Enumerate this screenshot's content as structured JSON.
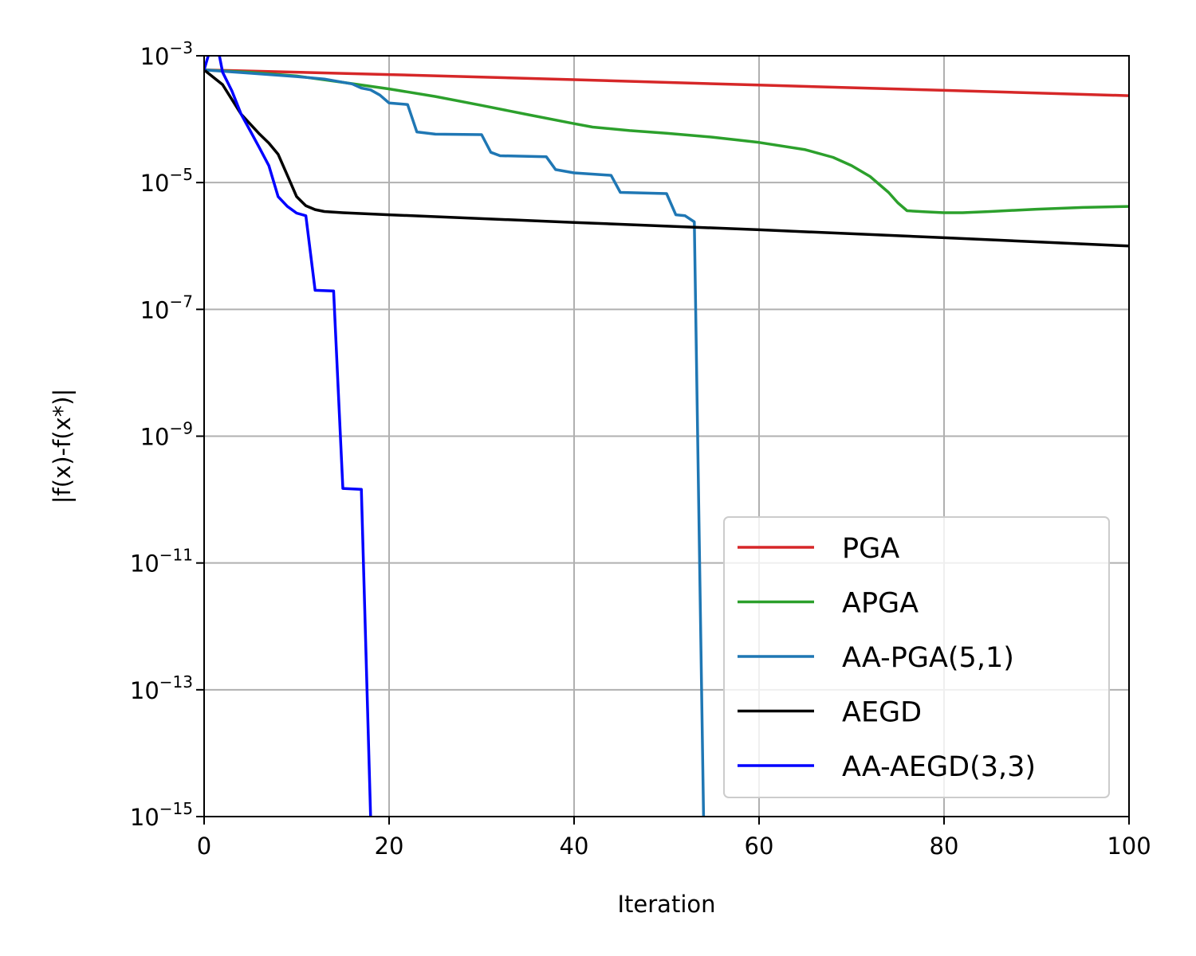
{
  "chart_data": {
    "type": "line",
    "xlabel": "Iteration",
    "ylabel": "|f(x)-f(x*)|",
    "xlim": [
      0,
      100
    ],
    "ylim": [
      1e-15,
      0.001
    ],
    "yscale": "log",
    "grid": true,
    "legend_position": "lower-right",
    "x_ticks": [
      {
        "value": 0,
        "label": "0"
      },
      {
        "value": 20,
        "label": "20"
      },
      {
        "value": 40,
        "label": "40"
      },
      {
        "value": 60,
        "label": "60"
      },
      {
        "value": 80,
        "label": "80"
      },
      {
        "value": 100,
        "label": "100"
      }
    ],
    "y_ticks": [
      {
        "value": 0.001,
        "base": "10",
        "exp": "−3"
      },
      {
        "value": 1e-05,
        "base": "10",
        "exp": "−5"
      },
      {
        "value": 1e-07,
        "base": "10",
        "exp": "−7"
      },
      {
        "value": 1e-09,
        "base": "10",
        "exp": "−9"
      },
      {
        "value": 1e-11,
        "base": "10",
        "exp": "−11"
      },
      {
        "value": 1e-13,
        "base": "10",
        "exp": "−13"
      },
      {
        "value": 1e-15,
        "base": "10",
        "exp": "−15"
      }
    ],
    "series": [
      {
        "name": "PGA",
        "color": "#d62728",
        "points": [
          [
            0,
            0.0006
          ],
          [
            20,
            0.000505
          ],
          [
            40,
            0.00042
          ],
          [
            60,
            0.000345
          ],
          [
            80,
            0.000285
          ],
          [
            100,
            0.000235
          ]
        ]
      },
      {
        "name": "APGA",
        "color": "#2ca02c",
        "points": [
          [
            0,
            0.0006
          ],
          [
            5,
            0.00055
          ],
          [
            10,
            0.00048
          ],
          [
            15,
            0.00038
          ],
          [
            20,
            0.0003
          ],
          [
            25,
            0.000228
          ],
          [
            30,
            0.000165
          ],
          [
            35,
            0.000118
          ],
          [
            40,
            8.5e-05
          ],
          [
            42,
            7.5e-05
          ],
          [
            46,
            6.6e-05
          ],
          [
            50,
            6e-05
          ],
          [
            55,
            5.2e-05
          ],
          [
            60,
            4.3e-05
          ],
          [
            65,
            3.3e-05
          ],
          [
            68,
            2.5e-05
          ],
          [
            70,
            1.85e-05
          ],
          [
            72,
            1.25e-05
          ],
          [
            74,
            7e-06
          ],
          [
            75,
            4.8e-06
          ],
          [
            76,
            3.6e-06
          ],
          [
            78,
            3.45e-06
          ],
          [
            80,
            3.35e-06
          ],
          [
            82,
            3.35e-06
          ],
          [
            85,
            3.5e-06
          ],
          [
            90,
            3.8e-06
          ],
          [
            95,
            4.05e-06
          ],
          [
            100,
            4.2e-06
          ]
        ]
      },
      {
        "name": "AA-PGA(5,1)",
        "color": "#1f77b4",
        "points": [
          [
            0,
            0.0006
          ],
          [
            5,
            0.00053
          ],
          [
            10,
            0.00047
          ],
          [
            13,
            0.00043
          ],
          [
            16,
            0.00036
          ],
          [
            17,
            0.00031
          ],
          [
            18,
            0.00029
          ],
          [
            19,
            0.00024
          ],
          [
            20,
            0.00018
          ],
          [
            22,
            0.00017
          ],
          [
            23,
            6.3e-05
          ],
          [
            25,
            5.8e-05
          ],
          [
            30,
            5.7e-05
          ],
          [
            31,
            3e-05
          ],
          [
            32,
            2.65e-05
          ],
          [
            37,
            2.55e-05
          ],
          [
            38,
            1.6e-05
          ],
          [
            40,
            1.42e-05
          ],
          [
            44,
            1.3e-05
          ],
          [
            45,
            7e-06
          ],
          [
            50,
            6.7e-06
          ],
          [
            51,
            3.1e-06
          ],
          [
            52,
            3e-06
          ],
          [
            53,
            2.4e-06
          ],
          [
            54,
            1e-15
          ]
        ]
      },
      {
        "name": "AEGD",
        "color": "#000000",
        "points": [
          [
            0,
            0.0006
          ],
          [
            2,
            0.00035
          ],
          [
            4,
            0.00012
          ],
          [
            6,
            5.8e-05
          ],
          [
            7,
            4.2e-05
          ],
          [
            8,
            2.8e-05
          ],
          [
            9,
            1.3e-05
          ],
          [
            10,
            6e-06
          ],
          [
            11,
            4.3e-06
          ],
          [
            12,
            3.75e-06
          ],
          [
            13,
            3.5e-06
          ],
          [
            15,
            3.35e-06
          ],
          [
            20,
            3.1e-06
          ],
          [
            40,
            2.35e-06
          ],
          [
            60,
            1.8e-06
          ],
          [
            80,
            1.35e-06
          ],
          [
            100,
            1e-06
          ]
        ]
      },
      {
        "name": "AA-AEGD(3,3)",
        "color": "#0000ff",
        "points": [
          [
            0,
            0.0006
          ],
          [
            0.8,
            0.0015
          ],
          [
            1.5,
            0.0013
          ],
          [
            2,
            0.00055
          ],
          [
            3,
            0.00028
          ],
          [
            4,
            0.00012
          ],
          [
            5,
            6.5e-05
          ],
          [
            6,
            3.5e-05
          ],
          [
            7,
            1.85e-05
          ],
          [
            8,
            6e-06
          ],
          [
            9,
            4.2e-06
          ],
          [
            10,
            3.3e-06
          ],
          [
            11,
            3e-06
          ],
          [
            12,
            2e-07
          ],
          [
            14,
            1.95e-07
          ],
          [
            15,
            1.5e-10
          ],
          [
            17,
            1.45e-10
          ],
          [
            18,
            1e-15
          ]
        ]
      }
    ]
  }
}
